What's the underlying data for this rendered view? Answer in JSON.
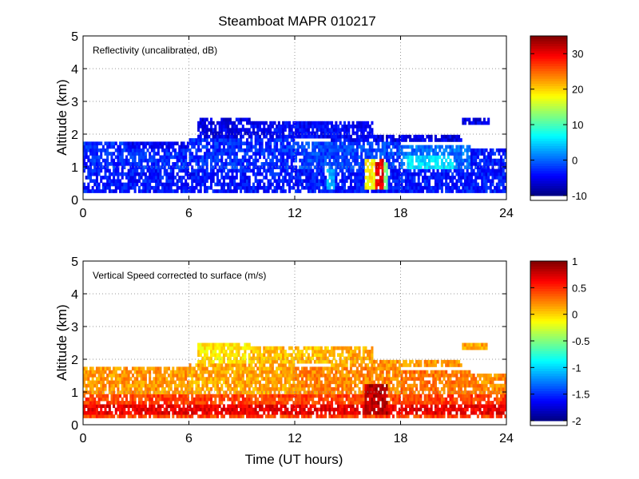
{
  "figure": {
    "title": "Steamboat MAPR 010217",
    "xlabel": "Time (UT hours)"
  },
  "chart_data": [
    {
      "type": "heatmap",
      "panel": "top",
      "annotation": "Reflectivity (uncalibrated, dB)",
      "ylabel": "Altitude (km)",
      "xlim": [
        0,
        24
      ],
      "ylim": [
        0,
        5
      ],
      "xticks": [
        "0",
        "6",
        "12",
        "18",
        "24"
      ],
      "yticks": [
        "0",
        "1",
        "2",
        "3",
        "4",
        "5"
      ],
      "grid": true,
      "colormap": "jet",
      "colorbar": {
        "range": [
          -10,
          35
        ],
        "ticks": [
          "30",
          "20",
          "10",
          "0",
          "-10"
        ],
        "tick_values": [
          30,
          20,
          10,
          0,
          -10
        ]
      },
      "default_value": -3,
      "layers": [
        {
          "t0": 0.0,
          "t1": 24.0,
          "z0": 0.25,
          "z1": 0.95,
          "value": -4
        },
        {
          "t0": 0.0,
          "t1": 6.0,
          "z0": 0.95,
          "z1": 1.75,
          "value": -3
        },
        {
          "t0": 2.5,
          "t1": 6.0,
          "z0": 1.6,
          "z1": 1.8,
          "value": -5
        },
        {
          "t0": 6.0,
          "t1": 12.0,
          "z0": 0.95,
          "z1": 1.85,
          "value": -3
        },
        {
          "t0": 6.5,
          "t1": 9.5,
          "z0": 1.85,
          "z1": 2.5,
          "value": -6
        },
        {
          "t0": 9.5,
          "t1": 14.0,
          "z0": 1.85,
          "z1": 2.35,
          "value": -5
        },
        {
          "t0": 12.0,
          "t1": 18.0,
          "z0": 0.95,
          "z1": 1.75,
          "value": -2
        },
        {
          "t0": 14.0,
          "t1": 16.5,
          "z0": 1.8,
          "z1": 2.35,
          "value": -5
        },
        {
          "t0": 16.5,
          "t1": 21.5,
          "z0": 1.8,
          "z1": 2.0,
          "value": -6
        },
        {
          "t0": 18.0,
          "t1": 22.0,
          "z0": 0.95,
          "z1": 1.7,
          "value": 0
        },
        {
          "t0": 21.5,
          "t1": 23.0,
          "z0": 2.3,
          "z1": 2.5,
          "value": -6
        },
        {
          "t0": 22.0,
          "t1": 24.0,
          "z0": 0.95,
          "z1": 1.6,
          "value": -4
        },
        {
          "t0": 15.9,
          "t1": 16.6,
          "z0": 0.3,
          "z1": 1.2,
          "value": 18
        },
        {
          "t0": 16.6,
          "t1": 17.0,
          "z0": 0.3,
          "z1": 1.2,
          "value": 30
        },
        {
          "t0": 17.0,
          "t1": 17.3,
          "z0": 0.3,
          "z1": 1.1,
          "value": 12
        },
        {
          "t0": 18.3,
          "t1": 21.0,
          "z0": 0.9,
          "z1": 1.4,
          "value": 5
        },
        {
          "t0": 13.8,
          "t1": 14.3,
          "z0": 0.3,
          "z1": 0.9,
          "value": 3
        }
      ]
    },
    {
      "type": "heatmap",
      "panel": "bottom",
      "annotation": "Vertical Speed corrected to surface (m/s)",
      "ylabel": "Altitude (km)",
      "xlim": [
        0,
        24
      ],
      "ylim": [
        0,
        5
      ],
      "xticks": [
        "0",
        "6",
        "12",
        "18",
        "24"
      ],
      "yticks": [
        "0",
        "1",
        "2",
        "3",
        "4",
        "5"
      ],
      "grid": true,
      "colormap": "jet",
      "colorbar": {
        "range": [
          -2,
          1
        ],
        "ticks": [
          "1",
          "0.5",
          "0",
          "-0.5",
          "-1",
          "-1.5",
          "-2"
        ],
        "tick_values": [
          1,
          0.5,
          0,
          -0.5,
          -1,
          -1.5,
          -2
        ]
      },
      "default_value": 0.2,
      "layers": [
        {
          "t0": 0.0,
          "t1": 24.0,
          "z0": 0.25,
          "z1": 0.95,
          "value": 0.4
        },
        {
          "t0": 0.0,
          "t1": 6.0,
          "z0": 0.95,
          "z1": 1.75,
          "value": 0.15
        },
        {
          "t0": 6.0,
          "t1": 12.0,
          "z0": 0.95,
          "z1": 1.85,
          "value": 0.1
        },
        {
          "t0": 6.5,
          "t1": 9.5,
          "z0": 1.85,
          "z1": 2.5,
          "value": -0.1
        },
        {
          "t0": 9.5,
          "t1": 14.0,
          "z0": 1.85,
          "z1": 2.35,
          "value": 0.05
        },
        {
          "t0": 12.0,
          "t1": 18.0,
          "z0": 0.95,
          "z1": 1.75,
          "value": 0.2
        },
        {
          "t0": 14.0,
          "t1": 16.5,
          "z0": 1.8,
          "z1": 2.35,
          "value": 0.1
        },
        {
          "t0": 16.5,
          "t1": 21.5,
          "z0": 1.8,
          "z1": 2.0,
          "value": 0.15
        },
        {
          "t0": 18.0,
          "t1": 22.0,
          "z0": 0.95,
          "z1": 1.7,
          "value": 0.25
        },
        {
          "t0": 21.5,
          "t1": 23.0,
          "z0": 2.3,
          "z1": 2.5,
          "value": 0.1
        },
        {
          "t0": 22.0,
          "t1": 24.0,
          "z0": 0.95,
          "z1": 1.6,
          "value": 0.2
        },
        {
          "t0": 0.0,
          "t1": 24.0,
          "z0": 0.3,
          "z1": 0.6,
          "value": 0.65
        },
        {
          "t0": 16.0,
          "t1": 17.3,
          "z0": 0.3,
          "z1": 1.2,
          "value": 0.8
        }
      ]
    }
  ]
}
